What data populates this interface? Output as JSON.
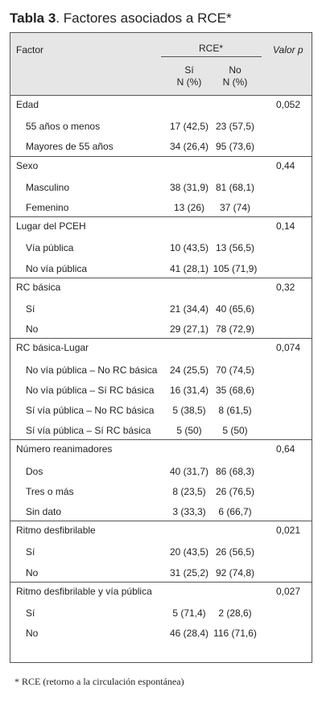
{
  "title": {
    "label": "Tabla 3",
    "text": ". Factores asociados a RCE*"
  },
  "header": {
    "factor": "Factor",
    "rce": "RCE*",
    "si": "Sí",
    "si_unit": "N (%)",
    "no": "No",
    "no_unit": "N (%)",
    "p": "Valor p"
  },
  "groups": [
    {
      "name": "Edad",
      "p": "0,052",
      "rows": [
        [
          "55 años o menos",
          "17 (42,5)",
          "23 (57,5)"
        ],
        [
          "Mayores de 55 años",
          "34 (26,4)",
          "95 (73,6)"
        ]
      ]
    },
    {
      "name": "Sexo",
      "p": "0,44",
      "rows": [
        [
          "Masculino",
          "38 (31,9)",
          "81 (68,1)"
        ],
        [
          "Femenino",
          "13 (26)",
          "37 (74)"
        ]
      ]
    },
    {
      "name": "Lugar del PCEH",
      "p": "0,14",
      "rows": [
        [
          "Vía pública",
          "10 (43,5)",
          "13 (56,5)"
        ],
        [
          "No vía pública",
          "41 (28,1)",
          "105 (71,9)"
        ]
      ]
    },
    {
      "name": "RC básica",
      "p": "0,32",
      "rows": [
        [
          "Sí",
          "21 (34,4)",
          "40 (65,6)"
        ],
        [
          "No",
          "29 (27,1)",
          "78 (72,9)"
        ]
      ]
    },
    {
      "name": "RC básica-Lugar",
      "p": "0,074",
      "rows": [
        [
          "No vía pública – No RC básica",
          "24 (25,5)",
          "70 (74,5)"
        ],
        [
          "No vía pública – Sí RC básica",
          "16 (31,4)",
          "35 (68,6)"
        ],
        [
          "Sí vía pública – No RC básica",
          "5 (38,5)",
          "8 (61,5)"
        ],
        [
          "Sí vía pública – Sí RC básica",
          "5 (50)",
          "5 (50)"
        ]
      ]
    },
    {
      "name": "Número reanimadores",
      "p": "0,64",
      "rows": [
        [
          "Dos",
          "40 (31,7)",
          "86 (68,3)"
        ],
        [
          "Tres o más",
          "8 (23,5)",
          "26 (76,5)"
        ],
        [
          "Sin dato",
          "3 (33,3)",
          "6 (66,7)"
        ]
      ]
    },
    {
      "name": "Ritmo desfibrilable",
      "p": "0,021",
      "rows": [
        [
          "Sí",
          "20 (43,5)",
          "26 (56,5)"
        ],
        [
          "No",
          "31 (25,2)",
          "92 (74,8)"
        ]
      ]
    },
    {
      "name": "Ritmo desfibrilable y vía pública",
      "p": "0,027",
      "rows": [
        [
          "Sí",
          "5 (71,4)",
          "2 (28,6)"
        ],
        [
          "No",
          "46 (28,4)",
          "116 (71,6)"
        ]
      ]
    }
  ],
  "footnote": "* RCE (retorno a la circulación espontánea)"
}
